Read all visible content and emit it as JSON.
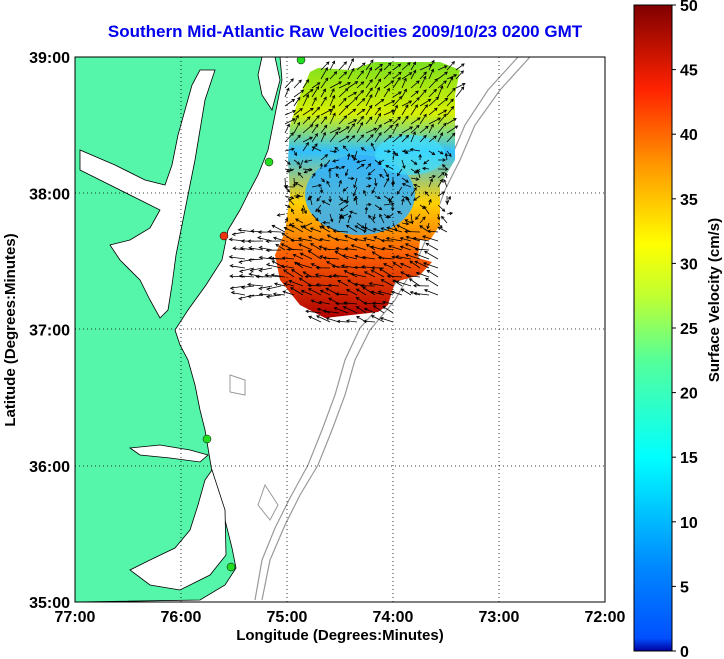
{
  "title": "Southern Mid-Atlantic Raw Velocities 2009/10/23 0200 GMT",
  "x_axis": {
    "label": "Longitude (Degrees:Minutes)",
    "ticks": [
      "77:00",
      "76:00",
      "75:00",
      "74:00",
      "73:00",
      "72:00"
    ],
    "range": [
      -77,
      -72
    ]
  },
  "y_axis": {
    "label": "Latitude (Degrees:Minutes)",
    "ticks": [
      "35:00",
      "36:00",
      "37:00",
      "38:00",
      "39:00"
    ],
    "range": [
      35,
      39
    ]
  },
  "colorbar": {
    "label": "Surface Velocity (cm/s)",
    "ticks": [
      "0",
      "5",
      "10",
      "15",
      "20",
      "25",
      "30",
      "35",
      "40",
      "45",
      "50"
    ],
    "range": [
      0,
      50
    ],
    "colormap": "jet"
  },
  "colors": {
    "land": "#55f5aa",
    "ocean": "#ffffff",
    "title": "#0000ee",
    "station": "#22dd22",
    "station_alert": "#ee3311",
    "bathymetry": "#999999"
  },
  "grid": "dotted"
}
